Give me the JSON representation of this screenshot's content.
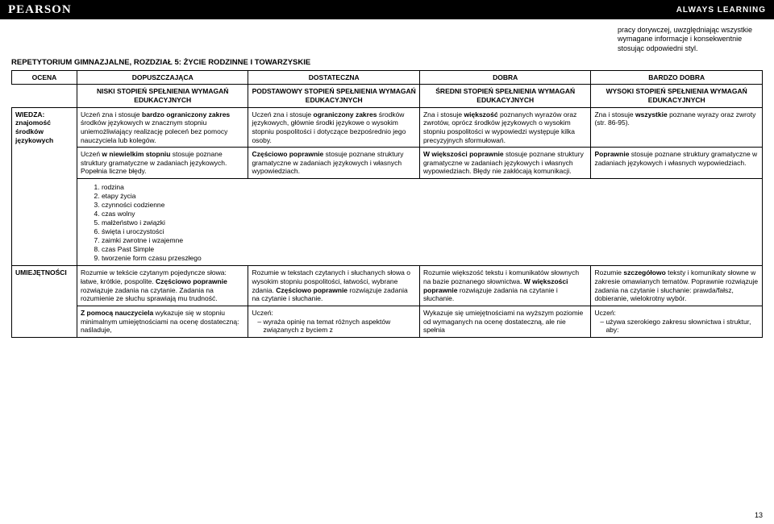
{
  "header": {
    "brand": "PEARSON",
    "tagline": "ALWAYS LEARNING"
  },
  "topText": "pracy dorywczej, uwzględniając wszystkie wymagane informacje i konsekwentnie stosując odpowiedni styl.",
  "sectionTitle": "REPETYTORIUM GIMNAZJALNE, ROZDZIAŁ 5: ŻYCIE RODZINNE I TOWARZYSKIE",
  "gradeHeader": {
    "label": "OCENA",
    "c1": "DOPUSZCZAJĄCA",
    "c2": "DOSTATECZNA",
    "c3": "DOBRA",
    "c4": "BARDZO DOBRA"
  },
  "levelHeader": {
    "c1": "NISKI STOPIEŃ SPEŁNIENIA WYMAGAŃ EDUKACYJNYCH",
    "c2": "PODSTAWOWY STOPIEŃ SPEŁNIENIA WYMAGAŃ EDUKACYJNYCH",
    "c3": "ŚREDNI STOPIEŃ SPEŁNIENIA WYMAGAŃ EDUKACYJNYCH",
    "c4": "WYSOKI STOPIEŃ SPEŁNIENIA WYMAGAŃ EDUKACYJNYCH"
  },
  "row1": {
    "label": "WIEDZA:\nznajomość środków językowych",
    "c1": "Uczeń zna i stosuje <b>bardzo ograniczony zakres</b> środków językowych w znacznym stopniu uniemożliwiający realizację poleceń bez pomocy nauczyciela lub kolegów.",
    "c2": "Uczeń zna i stosuje <b>ograniczony zakres</b> środków językowych, głównie środki językowe o wysokim stopniu pospolitości i dotyczące bezpośrednio jego osoby.",
    "c3": "Zna i stosuje <b>większość</b> poznanych wyrazów oraz zwrotów, oprócz środków językowych o wysokim stopniu pospolitości w wypowiedzi występuje kilka precyzyjnych sformułowań.",
    "c4": "Zna i stosuje <b>wszystkie</b> poznane wyrazy oraz zwroty (str. 86-95)."
  },
  "row2": {
    "c1": "Uczeń <b>w niewielkim stopniu</b> stosuje poznane struktury gramatyczne w zadaniach językowych. Popełnia liczne błędy.",
    "c2": "<b>Częściowo poprawnie</b> stosuje poznane struktury gramatyczne w zadaniach językowych i własnych wypowiedziach.",
    "c3": "<b>W większości poprawnie</b> stosuje poznane struktury gramatyczne w zadaniach językowych i własnych wypowiedziach. Błędy nie zakłócają komunikacji.",
    "c4": "<b>Poprawnie</b> stosuje poznane struktury gramatyczne w zadaniach językowych i własnych wypowiedziach."
  },
  "topics": [
    "rodzina",
    "etapy życia",
    "czynności codzienne",
    "czas wolny",
    "małżeństwo i związki",
    "święta i uroczystości",
    "zaimki zwrotne i wzajemne",
    "czas Past Simple",
    "tworzenie form czasu przeszłego"
  ],
  "row3": {
    "label": "UMIEJĘTNOŚCI",
    "c1": "Rozumie w tekście czytanym pojedyncze słowa: łatwe, krótkie, pospolite. <b>Częściowo poprawnie</b> rozwiązuje zadania na czytanie. Zadania na rozumienie ze słuchu sprawiają mu trudność.",
    "c2": "Rozumie w tekstach czytanych i słuchanych słowa o wysokim stopniu pospolitości, łatwości, wybrane zdania. <b>Częściowo poprawnie</b> rozwiązuje zadania na czytanie i słuchanie.",
    "c3": "Rozumie większość tekstu i komunikatów słownych na bazie poznanego słownictwa. <b>W większości poprawnie</b> rozwiązuje zadania na czytanie i słuchanie.",
    "c4": "Rozumie <b>szczegółowo</b> teksty i komunikaty słowne w zakresie omawianych tematów. Poprawnie rozwiązuje zadania na czytanie i słuchanie: prawda/fałsz, dobieranie, wielokrotny wybór."
  },
  "row4": {
    "c1": "<b>Z pomocą nauczyciela</b> wykazuje się w stopniu minimalnym umiejętnościami na ocenę dostateczną: naśladuje,",
    "c2_lead": "Uczeń:",
    "c2_bullet": "wyraża opinię na temat różnych aspektów związanych z byciem z",
    "c3": "Wykazuje się umiejętnościami na wyższym poziomie od wymaganych na ocenę dostateczną, ale nie spełnia",
    "c4_lead": "Uczeń:",
    "c4_bullet": "używa szerokiego zakresu słownictwa i struktur, aby:"
  },
  "pageNumber": "13"
}
